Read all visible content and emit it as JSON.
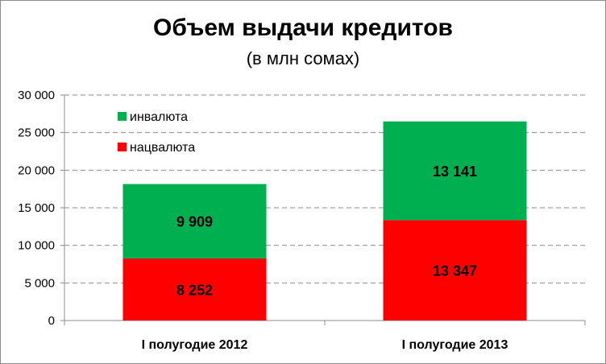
{
  "chart_data": {
    "type": "bar",
    "stacked": true,
    "title": "Объем выдачи кредитов",
    "subtitle": "(в млн сомах)",
    "categories": [
      "I полугодие 2012",
      "I полугодие 2013"
    ],
    "series": [
      {
        "name": "нацвалюта",
        "values": [
          8252,
          13347
        ],
        "labels": [
          "8 252",
          "13 347"
        ],
        "color": "#ff0000"
      },
      {
        "name": "инвалюта",
        "values": [
          9909,
          13141
        ],
        "labels": [
          "9 909",
          "13 141"
        ],
        "color": "#00b050"
      }
    ],
    "ylim": [
      0,
      30000
    ],
    "yticks": [
      0,
      5000,
      10000,
      15000,
      20000,
      25000,
      30000
    ],
    "ytick_labels": [
      "0",
      "5 000",
      "10 000",
      "15 000",
      "20 000",
      "25 000",
      "30 000"
    ],
    "grid": true,
    "legend": "top-left",
    "legend_order": [
      "инвалюта",
      "нацвалюта"
    ],
    "xlabel": "",
    "ylabel": ""
  }
}
